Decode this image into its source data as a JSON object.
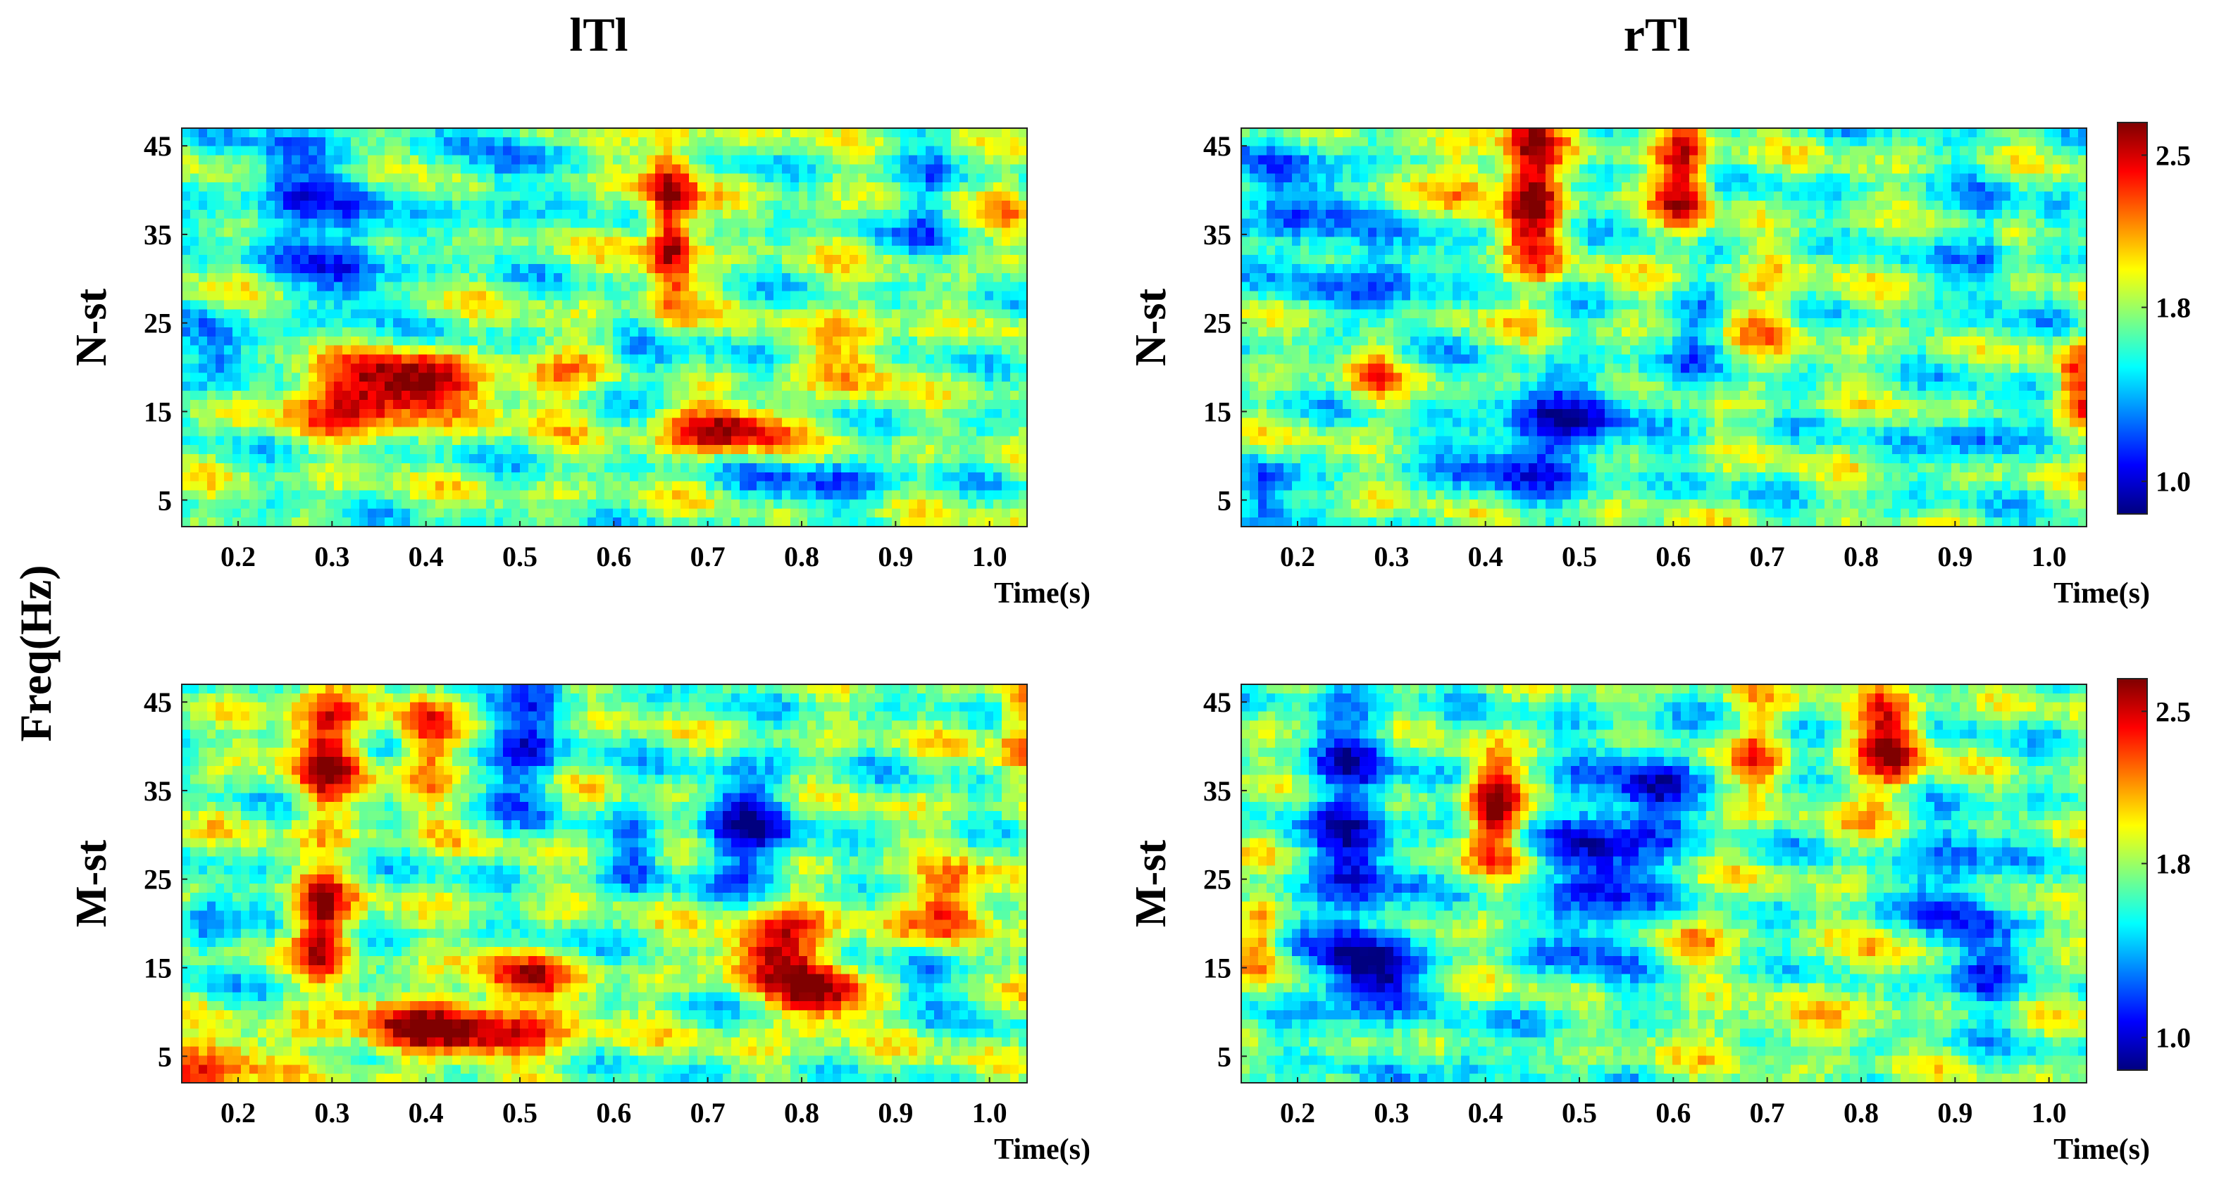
{
  "chart_data": {
    "type": "heatmap",
    "figure_label": "Freq(Hz)",
    "column_titles": [
      "lTl",
      "rTl"
    ],
    "row_labels": [
      "N-st",
      "M-st"
    ],
    "x_ticks": [
      "0.2",
      "0.3",
      "0.4",
      "0.5",
      "0.6",
      "0.7",
      "0.8",
      "0.9",
      "1.0"
    ],
    "x_axis_label": "Time(s)",
    "x_range": [
      0.14,
      1.04
    ],
    "y_ticks": [
      "45",
      "35",
      "25",
      "15",
      "5"
    ],
    "y_range": [
      2,
      47
    ],
    "colorbar": {
      "ticks": [
        "2.5",
        "1.8",
        "1.0"
      ],
      "range": [
        0.85,
        2.65
      ]
    },
    "colormap": [
      "#00007f",
      "#0000ff",
      "#007fff",
      "#00ffff",
      "#7fff7f",
      "#ffff00",
      "#ff7f00",
      "#ff0000",
      "#7f0000"
    ],
    "panels": [
      {
        "column": "lTl",
        "row": "N-st",
        "background": 1.72,
        "features": [
          {
            "t": 0.33,
            "f": 17,
            "st": 0.055,
            "sf": 3.0,
            "a": 0.85
          },
          {
            "t": 0.4,
            "f": 18,
            "st": 0.04,
            "sf": 2.5,
            "a": 0.6
          },
          {
            "t": 0.72,
            "f": 13,
            "st": 0.05,
            "sf": 2.0,
            "a": 0.85
          },
          {
            "t": 0.66,
            "f": 36,
            "st": 0.018,
            "sf": 8.0,
            "a": 0.95
          },
          {
            "t": 0.53,
            "f": 18,
            "st": 0.03,
            "sf": 3.0,
            "a": 0.45
          },
          {
            "t": 0.86,
            "f": 22,
            "st": 0.03,
            "sf": 4.0,
            "a": 0.4
          },
          {
            "t": 0.25,
            "f": 40,
            "st": 0.03,
            "sf": 6.0,
            "a": -0.5
          },
          {
            "t": 0.32,
            "f": 33,
            "st": 0.03,
            "sf": 6.0,
            "a": -0.55
          },
          {
            "t": 0.18,
            "f": 21,
            "st": 0.025,
            "sf": 3.0,
            "a": -0.55
          },
          {
            "t": 0.48,
            "f": 42,
            "st": 0.025,
            "sf": 5.0,
            "a": -0.4
          },
          {
            "t": 0.94,
            "f": 38,
            "st": 0.02,
            "sf": 5.0,
            "a": -0.45
          },
          {
            "t": 0.82,
            "f": 7,
            "st": 0.06,
            "sf": 2.0,
            "a": -0.45
          },
          {
            "t": 0.65,
            "f": 20,
            "st": 0.03,
            "sf": 3.0,
            "a": -0.35
          },
          {
            "t": 1.02,
            "f": 38,
            "st": 0.015,
            "sf": 4.0,
            "a": 0.5
          }
        ]
      },
      {
        "column": "rTl",
        "row": "N-st",
        "background": 1.7,
        "features": [
          {
            "t": 0.45,
            "f": 40,
            "st": 0.022,
            "sf": 7.0,
            "a": 0.95
          },
          {
            "t": 0.61,
            "f": 42,
            "st": 0.02,
            "sf": 5.0,
            "a": 0.85
          },
          {
            "t": 0.38,
            "f": 42,
            "st": 0.02,
            "sf": 3.0,
            "a": 0.5
          },
          {
            "t": 0.28,
            "f": 20,
            "st": 0.02,
            "sf": 3.0,
            "a": 0.45
          },
          {
            "t": 1.03,
            "f": 18,
            "st": 0.015,
            "sf": 4.0,
            "a": 0.6
          },
          {
            "t": 0.45,
            "f": 10,
            "st": 0.06,
            "sf": 3.0,
            "a": -0.6
          },
          {
            "t": 0.5,
            "f": 16,
            "st": 0.06,
            "sf": 2.5,
            "a": -0.45
          },
          {
            "t": 0.2,
            "f": 38,
            "st": 0.03,
            "sf": 6.0,
            "a": -0.55
          },
          {
            "t": 0.3,
            "f": 30,
            "st": 0.03,
            "sf": 4.0,
            "a": -0.5
          },
          {
            "t": 0.92,
            "f": 12,
            "st": 0.03,
            "sf": 2.0,
            "a": -0.5
          },
          {
            "t": 0.93,
            "f": 33,
            "st": 0.02,
            "sf": 6.0,
            "a": -0.4
          },
          {
            "t": 0.16,
            "f": 5,
            "st": 0.02,
            "sf": 3.0,
            "a": -0.6
          },
          {
            "t": 0.7,
            "f": 26,
            "st": 0.03,
            "sf": 4.0,
            "a": 0.35
          },
          {
            "t": 0.63,
            "f": 24,
            "st": 0.02,
            "sf": 3.0,
            "a": -0.4
          }
        ]
      },
      {
        "column": "lTl",
        "row": "M-st",
        "background": 1.72,
        "features": [
          {
            "t": 0.29,
            "f": 40,
            "st": 0.025,
            "sf": 6.0,
            "a": 0.85
          },
          {
            "t": 0.4,
            "f": 40,
            "st": 0.02,
            "sf": 5.0,
            "a": 0.7
          },
          {
            "t": 0.29,
            "f": 20,
            "st": 0.022,
            "sf": 4.0,
            "a": 0.9
          },
          {
            "t": 0.43,
            "f": 8,
            "st": 0.09,
            "sf": 2.5,
            "a": 0.85
          },
          {
            "t": 0.5,
            "f": 14,
            "st": 0.04,
            "sf": 2.0,
            "a": 0.6
          },
          {
            "t": 0.17,
            "f": 4,
            "st": 0.04,
            "sf": 2.0,
            "a": 0.7
          },
          {
            "t": 0.77,
            "f": 18,
            "st": 0.04,
            "sf": 3.0,
            "a": 0.85
          },
          {
            "t": 0.82,
            "f": 12,
            "st": 0.035,
            "sf": 3.0,
            "a": 0.8
          },
          {
            "t": 0.96,
            "f": 22,
            "st": 0.03,
            "sf": 3.0,
            "a": 0.8
          },
          {
            "t": 1.03,
            "f": 42,
            "st": 0.015,
            "sf": 4.0,
            "a": 0.6
          },
          {
            "t": 0.74,
            "f": 30,
            "st": 0.035,
            "sf": 5.0,
            "a": -0.7
          },
          {
            "t": 0.5,
            "f": 40,
            "st": 0.03,
            "sf": 5.0,
            "a": -0.6
          },
          {
            "t": 0.17,
            "f": 20,
            "st": 0.02,
            "sf": 3.0,
            "a": -0.55
          },
          {
            "t": 0.93,
            "f": 14,
            "st": 0.02,
            "sf": 3.0,
            "a": -0.45
          },
          {
            "t": 0.62,
            "f": 28,
            "st": 0.02,
            "sf": 4.0,
            "a": -0.35
          }
        ]
      },
      {
        "column": "rTl",
        "row": "M-st",
        "background": 1.7,
        "features": [
          {
            "t": 0.26,
            "f": 30,
            "st": 0.03,
            "sf": 12.0,
            "a": -0.7
          },
          {
            "t": 0.28,
            "f": 14,
            "st": 0.035,
            "sf": 3.0,
            "a": -0.7
          },
          {
            "t": 0.52,
            "f": 25,
            "st": 0.035,
            "sf": 8.0,
            "a": -0.65
          },
          {
            "t": 0.58,
            "f": 34,
            "st": 0.03,
            "sf": 5.0,
            "a": -0.55
          },
          {
            "t": 0.9,
            "f": 24,
            "st": 0.03,
            "sf": 6.0,
            "a": -0.55
          },
          {
            "t": 0.93,
            "f": 14,
            "st": 0.025,
            "sf": 3.0,
            "a": -0.5
          },
          {
            "t": 0.41,
            "f": 33,
            "st": 0.02,
            "sf": 4.0,
            "a": 0.95
          },
          {
            "t": 0.83,
            "f": 40,
            "st": 0.025,
            "sf": 5.0,
            "a": 0.85
          },
          {
            "t": 0.69,
            "f": 40,
            "st": 0.02,
            "sf": 4.0,
            "a": 0.5
          },
          {
            "t": 0.16,
            "f": 18,
            "st": 0.015,
            "sf": 3.0,
            "a": 0.45
          },
          {
            "t": 0.82,
            "f": 15,
            "st": 0.02,
            "sf": 2.5,
            "a": 0.4
          },
          {
            "t": 0.7,
            "f": 8,
            "st": 0.08,
            "sf": 1.5,
            "a": 0.3
          },
          {
            "t": 0.38,
            "f": 5,
            "st": 0.02,
            "sf": 2.0,
            "a": -0.45
          },
          {
            "t": 0.62,
            "f": 18,
            "st": 0.025,
            "sf": 3.0,
            "a": 0.3
          }
        ]
      }
    ]
  }
}
